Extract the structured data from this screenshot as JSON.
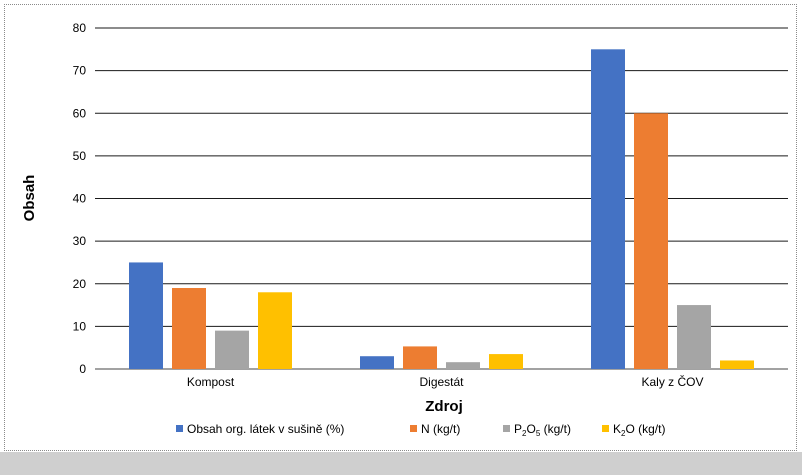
{
  "chart_data": {
    "type": "bar",
    "xlabel": "Zdroj",
    "ylabel": "Obsah",
    "ylim": [
      0,
      80
    ],
    "yticks": [
      0,
      10,
      20,
      30,
      40,
      50,
      60,
      70,
      80
    ],
    "grid": true,
    "legend_position": "bottom",
    "categories": [
      "Kompost",
      "Digestát",
      "Kaly z ČOV"
    ],
    "series": [
      {
        "name": "Obsah org. látek v sušině (%)",
        "color": "#4472c4",
        "values": [
          25,
          3,
          75
        ]
      },
      {
        "name": "N (kg/t)",
        "color": "#ed7d31",
        "values": [
          19,
          5.3,
          60
        ]
      },
      {
        "name": "P2O5 (kg/t)",
        "color": "#a5a5a5",
        "values": [
          9,
          1.6,
          15
        ]
      },
      {
        "name": "K2O (kg/t)",
        "color": "#ffc000",
        "values": [
          18,
          3.5,
          2
        ]
      }
    ]
  }
}
